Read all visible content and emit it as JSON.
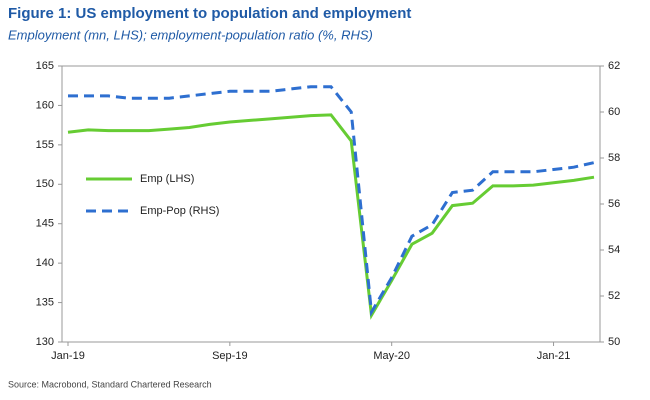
{
  "chart_data": {
    "type": "line",
    "title": "Figure 1: US employment to population and employment",
    "subtitle": "Employment (mn, LHS); employment-population ratio (%, RHS)",
    "source": "Source: Macrobond, Standard Chartered Research",
    "categories": [
      "Jan-19",
      null,
      null,
      null,
      null,
      null,
      null,
      null,
      "Sep-19",
      null,
      null,
      null,
      null,
      null,
      null,
      null,
      "May-20",
      null,
      null,
      null,
      null,
      null,
      null,
      null,
      "Jan-21",
      null,
      null
    ],
    "series": [
      {
        "name": "Emp (LHS)",
        "color": "#66cc33",
        "linestyle": "solid",
        "axis": "y",
        "values": [
          156.6,
          156.9,
          156.8,
          156.8,
          156.8,
          157.0,
          157.2,
          157.6,
          157.9,
          158.1,
          158.3,
          158.5,
          158.7,
          158.8,
          155.5,
          133.4,
          137.8,
          142.4,
          143.8,
          147.3,
          147.6,
          149.8,
          149.8,
          149.9,
          150.2,
          150.5,
          150.9
        ]
      },
      {
        "name": "Emp-Pop (RHS)",
        "color": "#2e6fd0",
        "linestyle": "dashed",
        "axis": "y2",
        "values": [
          60.7,
          60.7,
          60.7,
          60.6,
          60.6,
          60.6,
          60.7,
          60.8,
          60.9,
          60.9,
          60.9,
          61.0,
          61.1,
          61.1,
          60.0,
          51.3,
          52.8,
          54.6,
          55.1,
          56.5,
          56.6,
          57.4,
          57.4,
          57.4,
          57.5,
          57.6,
          57.8
        ]
      }
    ],
    "ylim": [
      130,
      165
    ],
    "yticks": [
      130,
      135,
      140,
      145,
      150,
      155,
      160,
      165
    ],
    "y2lim": [
      50,
      62
    ],
    "y2ticks": [
      50,
      52,
      54,
      56,
      58,
      60,
      62
    ],
    "grid": false,
    "legend": "center left"
  }
}
